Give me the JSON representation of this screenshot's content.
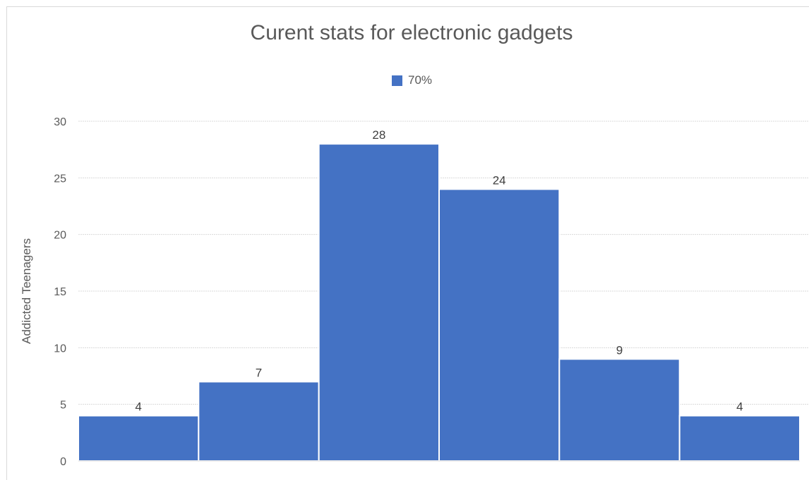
{
  "chart_data": {
    "type": "bar",
    "title": "Curent stats for electronic gadgets",
    "xlabel": "",
    "ylabel": "Addicted Teenagers",
    "categories": [
      "",
      "",
      "",
      "",
      "",
      ""
    ],
    "series": [
      {
        "name": "70%",
        "color": "#4472c4",
        "values": [
          4,
          7,
          28,
          24,
          9,
          4
        ]
      }
    ],
    "ylim": [
      0,
      30
    ],
    "yticks": [
      0,
      5,
      10,
      15,
      20,
      25,
      30
    ],
    "grid": true,
    "legend": "top-center",
    "gap_width": 0,
    "data_labels": true
  }
}
